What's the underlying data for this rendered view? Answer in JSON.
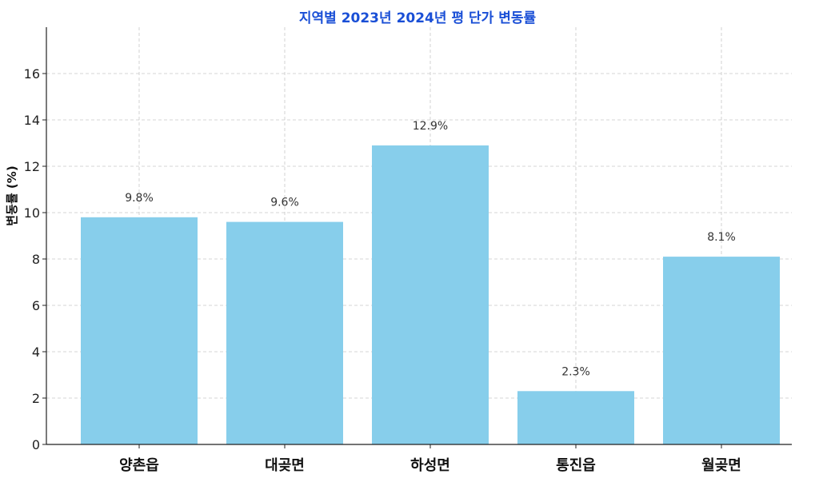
{
  "chart_data": {
    "type": "bar",
    "title": "지역별 2023년 2024년 평 단가 변동률",
    "xlabel": "",
    "ylabel": "변동률 (%)",
    "categories": [
      "양촌읍",
      "대곶면",
      "하성면",
      "통진읍",
      "월곶면"
    ],
    "values": [
      9.8,
      9.6,
      12.9,
      2.3,
      8.1
    ],
    "value_labels": [
      "9.8%",
      "9.6%",
      "12.9%",
      "2.3%",
      "8.1%"
    ],
    "yticks": [
      0,
      2,
      4,
      6,
      8,
      10,
      12,
      14,
      16
    ],
    "ylim": [
      0,
      18
    ],
    "grid": true,
    "colors": {
      "bar": "#87ceeb",
      "title": "#1a4fd6"
    }
  }
}
